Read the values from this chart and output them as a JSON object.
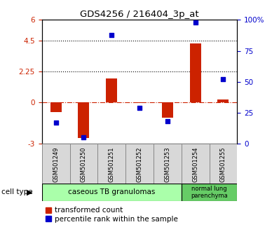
{
  "title": "GDS4256 / 216404_3p_at",
  "samples": [
    "GSM501249",
    "GSM501250",
    "GSM501251",
    "GSM501252",
    "GSM501253",
    "GSM501254",
    "GSM501255"
  ],
  "transformed_count": [
    -0.7,
    -2.6,
    1.75,
    -0.05,
    -1.1,
    4.3,
    0.2
  ],
  "percentile_rank": [
    17,
    5,
    88,
    29,
    18,
    98,
    52
  ],
  "ylim_left": [
    -3,
    6
  ],
  "ylim_right": [
    0,
    100
  ],
  "yticks_left": [
    -3,
    0,
    2.25,
    4.5,
    6
  ],
  "ytick_labels_left": [
    "-3",
    "0",
    "2.25",
    "4.5",
    "6"
  ],
  "yticks_right": [
    0,
    25,
    50,
    75,
    100
  ],
  "ytick_labels_right": [
    "0",
    "25",
    "50",
    "75",
    "100%"
  ],
  "bar_color_red": "#cc2200",
  "dot_color_blue": "#0000cc",
  "group1_color": "#aaffaa",
  "group2_color": "#66cc66",
  "group1_label": "caseous TB granulomas",
  "group2_label": "normal lung\nparenchyma",
  "legend_red_label": "transformed count",
  "legend_blue_label": "percentile rank within the sample",
  "cell_type_label": "cell type",
  "bar_width": 0.4,
  "dot_size": 18
}
